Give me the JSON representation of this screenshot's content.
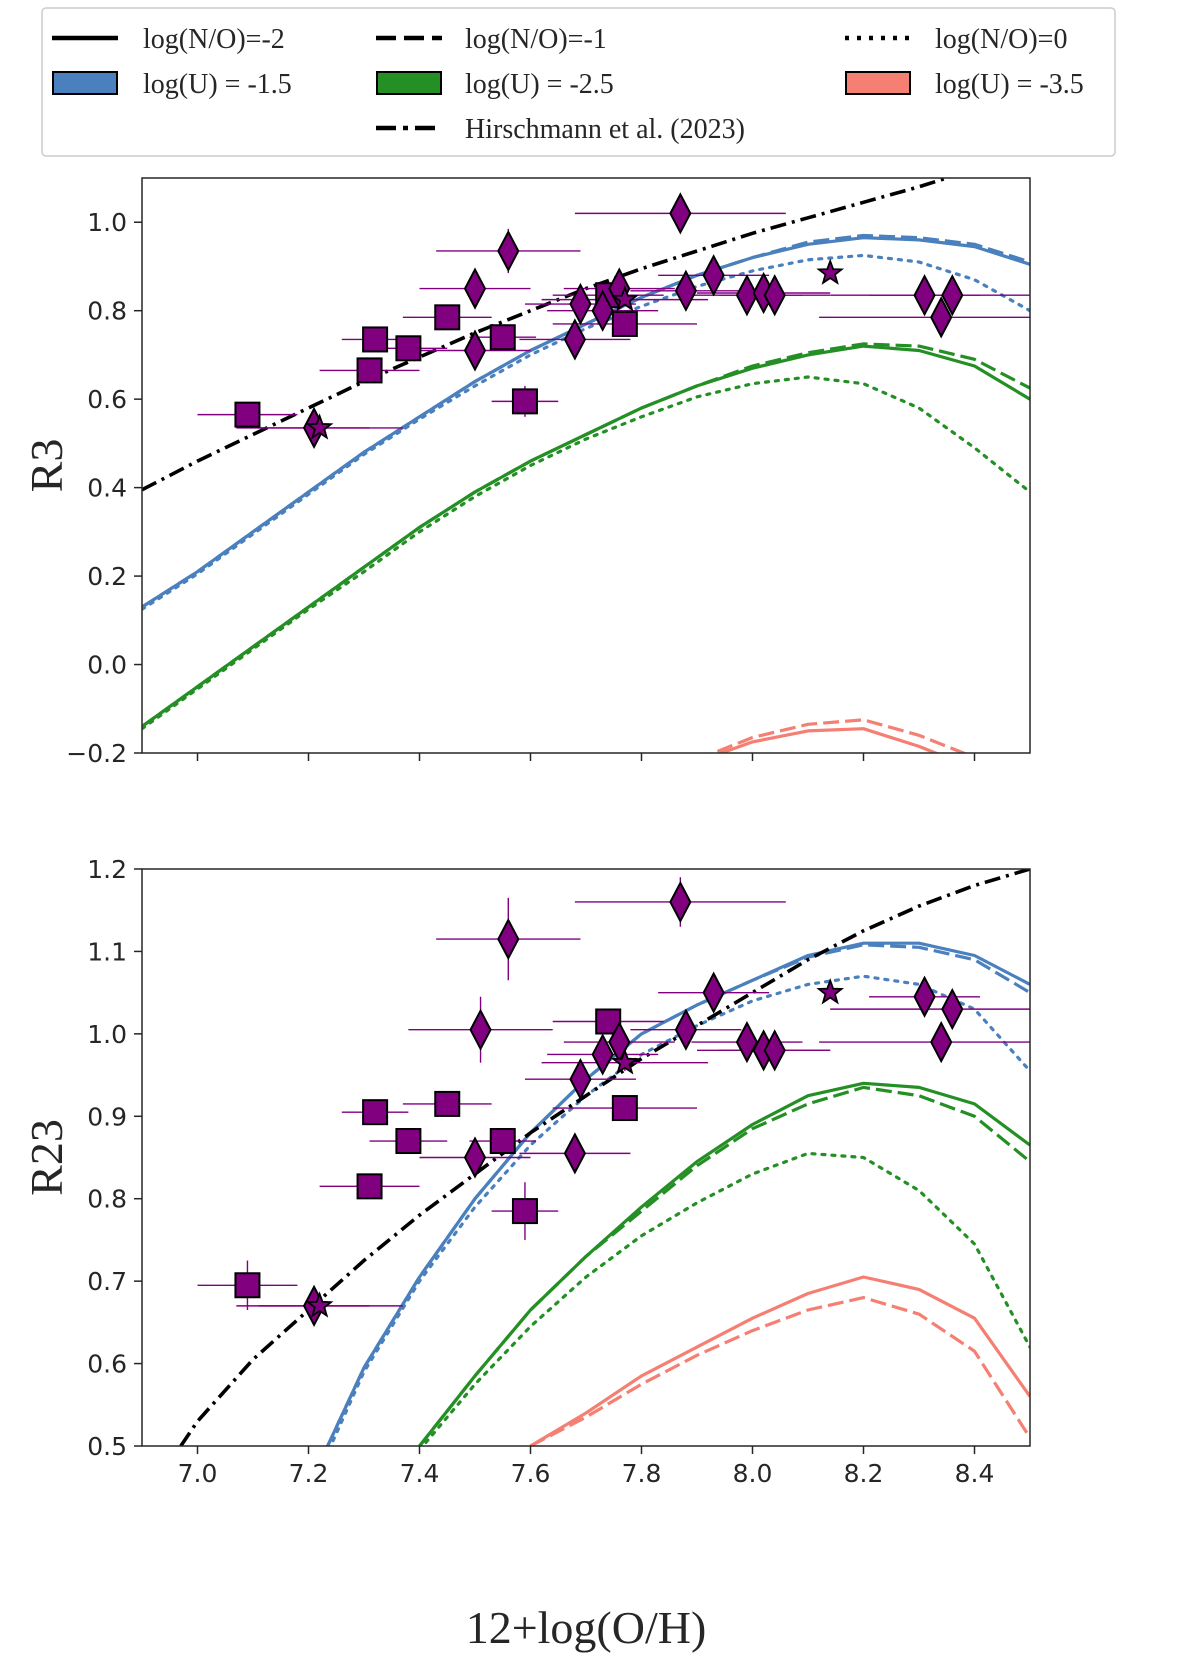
{
  "colors": {
    "blue": "#4a80bd",
    "green": "#248f24",
    "salmon": "#f47f72",
    "purple": "#800080",
    "black": "#000000",
    "hirschmann": "#000000"
  },
  "legend": {
    "placement": "top",
    "entries": [
      {
        "label": "log(N/O)=-2",
        "kind": "line",
        "style": "solid"
      },
      {
        "label": "log(N/O)=-1",
        "kind": "line",
        "style": "dashed"
      },
      {
        "label": "log(N/O)=0",
        "kind": "line",
        "style": "dotted"
      },
      {
        "label": "log(U) = -1.5",
        "kind": "patch",
        "color": "blue"
      },
      {
        "label": "log(U) = -2.5",
        "kind": "patch",
        "color": "green"
      },
      {
        "label": "log(U) = -3.5",
        "kind": "patch",
        "color": "salmon"
      },
      {
        "label": "Hirschmann et al. (2023)",
        "kind": "line",
        "style": "dashdot"
      }
    ]
  },
  "chart_data": [
    {
      "type": "line",
      "panel": "top",
      "xlabel": "",
      "ylabel": "R3",
      "xlim": [
        6.9,
        8.5
      ],
      "ylim": [
        -0.2,
        1.1
      ],
      "xticks": [
        7.0,
        7.2,
        7.4,
        7.6,
        7.8,
        8.0,
        8.2,
        8.4
      ],
      "xtick_labels": [],
      "yticks": [
        -0.2,
        0.0,
        0.2,
        0.4,
        0.6,
        0.8,
        1.0
      ],
      "ytick_labels": [
        "−0.2",
        "0.0",
        "0.2",
        "0.4",
        "0.6",
        "0.8",
        "1.0"
      ],
      "grid": false,
      "model_x": [
        6.9,
        7.0,
        7.1,
        7.2,
        7.3,
        7.4,
        7.5,
        7.6,
        7.7,
        7.8,
        7.9,
        8.0,
        8.1,
        8.2,
        8.3,
        8.4,
        8.5
      ],
      "models": [
        {
          "logU": "-1.5",
          "color": "blue",
          "style": "solid",
          "values": [
            0.13,
            0.21,
            0.3,
            0.39,
            0.48,
            0.56,
            0.64,
            0.71,
            0.77,
            0.83,
            0.88,
            0.92,
            0.95,
            0.965,
            0.96,
            0.945,
            0.905
          ]
        },
        {
          "logU": "-1.5",
          "color": "blue",
          "style": "dashed",
          "values": [
            0.13,
            0.21,
            0.3,
            0.39,
            0.48,
            0.56,
            0.64,
            0.71,
            0.77,
            0.83,
            0.88,
            0.92,
            0.955,
            0.97,
            0.965,
            0.95,
            0.91
          ]
        },
        {
          "logU": "-1.5",
          "color": "blue",
          "style": "dotted",
          "values": [
            0.125,
            0.205,
            0.295,
            0.385,
            0.475,
            0.555,
            0.63,
            0.7,
            0.76,
            0.81,
            0.855,
            0.89,
            0.915,
            0.925,
            0.91,
            0.87,
            0.8
          ]
        },
        {
          "logU": "-2.5",
          "color": "green",
          "style": "solid",
          "values": [
            -0.14,
            -0.05,
            0.04,
            0.13,
            0.22,
            0.31,
            0.39,
            0.46,
            0.52,
            0.58,
            0.63,
            0.67,
            0.7,
            0.72,
            0.71,
            0.675,
            0.6
          ]
        },
        {
          "logU": "-2.5",
          "color": "green",
          "style": "dashed",
          "values": [
            -0.14,
            -0.05,
            0.04,
            0.13,
            0.22,
            0.31,
            0.39,
            0.46,
            0.52,
            0.58,
            0.63,
            0.675,
            0.705,
            0.725,
            0.72,
            0.69,
            0.625
          ]
        },
        {
          "logU": "-2.5",
          "color": "green",
          "style": "dotted",
          "values": [
            -0.145,
            -0.055,
            0.035,
            0.125,
            0.21,
            0.3,
            0.38,
            0.45,
            0.51,
            0.56,
            0.605,
            0.635,
            0.65,
            0.635,
            0.58,
            0.49,
            0.39
          ]
        },
        {
          "logU": "-3.5",
          "color": "salmon",
          "style": "solid",
          "values": [
            null,
            null,
            null,
            null,
            null,
            null,
            null,
            null,
            null,
            null,
            -0.22,
            -0.175,
            -0.15,
            -0.145,
            -0.185,
            -0.235,
            null
          ]
        },
        {
          "logU": "-3.5",
          "color": "salmon",
          "style": "dashed",
          "values": [
            null,
            null,
            null,
            null,
            null,
            null,
            null,
            null,
            null,
            null,
            -0.215,
            -0.165,
            -0.135,
            -0.125,
            -0.16,
            -0.21,
            null
          ]
        }
      ],
      "hirschmann": {
        "x": [
          6.9,
          7.0,
          7.1,
          7.2,
          7.3,
          7.4,
          7.5,
          7.6,
          7.7,
          7.8,
          7.9,
          8.0,
          8.1,
          8.2,
          8.3,
          8.35
        ],
        "y": [
          0.395,
          0.46,
          0.52,
          0.58,
          0.64,
          0.695,
          0.75,
          0.8,
          0.85,
          0.895,
          0.935,
          0.975,
          1.01,
          1.045,
          1.08,
          1.1
        ]
      },
      "points": [
        {
          "x": 7.09,
          "y": 0.565,
          "marker": "square",
          "xerr": 0.09,
          "yerr": 0.01
        },
        {
          "x": 7.31,
          "y": 0.665,
          "marker": "square",
          "xerr": 0.09,
          "yerr": 0.01
        },
        {
          "x": 7.32,
          "y": 0.735,
          "marker": "square",
          "xerr": 0.06,
          "yerr": 0.01
        },
        {
          "x": 7.38,
          "y": 0.715,
          "marker": "square",
          "xerr": 0.07,
          "yerr": 0.01
        },
        {
          "x": 7.45,
          "y": 0.785,
          "marker": "square",
          "xerr": 0.08,
          "yerr": 0.01
        },
        {
          "x": 7.55,
          "y": 0.74,
          "marker": "square",
          "xerr": 0.06,
          "yerr": 0.01
        },
        {
          "x": 7.59,
          "y": 0.595,
          "marker": "square",
          "xerr": 0.06,
          "yerr": 0.035
        },
        {
          "x": 7.74,
          "y": 0.835,
          "marker": "square",
          "xerr": 0.1,
          "yerr": 0.01
        },
        {
          "x": 7.77,
          "y": 0.77,
          "marker": "square",
          "xerr": 0.13,
          "yerr": 0.01
        },
        {
          "x": 7.21,
          "y": 0.535,
          "marker": "diamond",
          "xerr": 0.1,
          "yerr": 0.02
        },
        {
          "x": 7.5,
          "y": 0.71,
          "marker": "diamond",
          "xerr": 0.1,
          "yerr": 0.02
        },
        {
          "x": 7.5,
          "y": 0.85,
          "marker": "diamond",
          "xerr": 0.1,
          "yerr": 0.02
        },
        {
          "x": 7.56,
          "y": 0.935,
          "marker": "diamond",
          "xerr": 0.13,
          "yerr": 0.05
        },
        {
          "x": 7.68,
          "y": 0.735,
          "marker": "diamond",
          "xerr": 0.1,
          "yerr": 0.02
        },
        {
          "x": 7.69,
          "y": 0.815,
          "marker": "diamond",
          "xerr": 0.1,
          "yerr": 0.02
        },
        {
          "x": 7.73,
          "y": 0.8,
          "marker": "diamond",
          "xerr": 0.1,
          "yerr": 0.02
        },
        {
          "x": 7.76,
          "y": 0.85,
          "marker": "diamond",
          "xerr": 0.1,
          "yerr": 0.02
        },
        {
          "x": 7.87,
          "y": 1.02,
          "marker": "diamond",
          "xerr": 0.19,
          "yerr": 0.03
        },
        {
          "x": 7.88,
          "y": 0.845,
          "marker": "diamond",
          "xerr": 0.1,
          "yerr": 0.02
        },
        {
          "x": 7.93,
          "y": 0.88,
          "marker": "diamond",
          "xerr": 0.1,
          "yerr": 0.02
        },
        {
          "x": 7.99,
          "y": 0.835,
          "marker": "diamond",
          "xerr": 0.1,
          "yerr": 0.02
        },
        {
          "x": 8.02,
          "y": 0.84,
          "marker": "diamond",
          "xerr": 0.12,
          "yerr": 0.02
        },
        {
          "x": 8.04,
          "y": 0.835,
          "marker": "diamond",
          "xerr": 0.1,
          "yerr": 0.02
        },
        {
          "x": 8.31,
          "y": 0.835,
          "marker": "diamond",
          "xerr": 0.1,
          "yerr": 0.02
        },
        {
          "x": 8.34,
          "y": 0.785,
          "marker": "diamond",
          "xerr": 0.22,
          "yerr": 0.02
        },
        {
          "x": 8.36,
          "y": 0.835,
          "marker": "diamond",
          "xerr": 0.22,
          "yerr": 0.02
        },
        {
          "x": 7.22,
          "y": 0.535,
          "marker": "star",
          "xerr": 0.15,
          "yerr": 0.01
        },
        {
          "x": 7.77,
          "y": 0.825,
          "marker": "star",
          "xerr": 0.15,
          "yerr": 0.01
        },
        {
          "x": 8.14,
          "y": 0.885,
          "marker": "star",
          "xerr": 0.0,
          "yerr": 0.0
        }
      ]
    },
    {
      "type": "line",
      "panel": "bottom",
      "xlabel": "12+log(O/H)",
      "ylabel": "R23",
      "xlim": [
        6.9,
        8.5
      ],
      "ylim": [
        0.5,
        1.2
      ],
      "xticks": [
        7.0,
        7.2,
        7.4,
        7.6,
        7.8,
        8.0,
        8.2,
        8.4
      ],
      "xtick_labels": [
        "7.0",
        "7.2",
        "7.4",
        "7.6",
        "7.8",
        "8.0",
        "8.2",
        "8.4"
      ],
      "yticks": [
        0.5,
        0.6,
        0.7,
        0.8,
        0.9,
        1.0,
        1.1,
        1.2
      ],
      "ytick_labels": [
        "0.5",
        "0.6",
        "0.7",
        "0.8",
        "0.9",
        "1.0",
        "1.1",
        "1.2"
      ],
      "grid": false,
      "model_x": [
        6.9,
        7.0,
        7.1,
        7.2,
        7.3,
        7.4,
        7.5,
        7.6,
        7.7,
        7.8,
        7.9,
        8.0,
        8.1,
        8.2,
        8.3,
        8.4,
        8.5
      ],
      "models": [
        {
          "logU": "-1.5",
          "color": "blue",
          "style": "solid",
          "values": [
            null,
            null,
            null,
            0.45,
            0.595,
            0.705,
            0.8,
            0.88,
            0.945,
            1.0,
            1.035,
            1.065,
            1.095,
            1.11,
            1.11,
            1.095,
            1.06
          ]
        },
        {
          "logU": "-1.5",
          "color": "blue",
          "style": "dashed",
          "values": [
            null,
            null,
            null,
            0.45,
            0.595,
            0.705,
            0.8,
            0.88,
            0.945,
            1.0,
            1.035,
            1.065,
            1.093,
            1.108,
            1.105,
            1.09,
            1.05
          ]
        },
        {
          "logU": "-1.5",
          "color": "blue",
          "style": "dotted",
          "values": [
            null,
            null,
            null,
            0.44,
            0.59,
            0.7,
            0.79,
            0.865,
            0.925,
            0.975,
            1.01,
            1.04,
            1.06,
            1.07,
            1.06,
            1.03,
            0.955
          ]
        },
        {
          "logU": "-2.5",
          "color": "green",
          "style": "solid",
          "values": [
            null,
            null,
            null,
            null,
            null,
            0.5,
            0.585,
            0.665,
            0.73,
            0.79,
            0.845,
            0.89,
            0.925,
            0.94,
            0.935,
            0.915,
            0.865
          ]
        },
        {
          "logU": "-2.5",
          "color": "green",
          "style": "dashed",
          "values": [
            null,
            null,
            null,
            null,
            null,
            0.5,
            0.585,
            0.665,
            0.73,
            0.785,
            0.84,
            0.885,
            0.915,
            0.935,
            0.925,
            0.9,
            0.845
          ]
        },
        {
          "logU": "-2.5",
          "color": "green",
          "style": "dotted",
          "values": [
            null,
            null,
            null,
            null,
            null,
            0.495,
            0.575,
            0.645,
            0.705,
            0.755,
            0.795,
            0.83,
            0.855,
            0.85,
            0.81,
            0.745,
            0.62
          ]
        },
        {
          "logU": "-3.5",
          "color": "salmon",
          "style": "solid",
          "values": [
            null,
            null,
            null,
            null,
            null,
            null,
            null,
            0.5,
            0.54,
            0.585,
            0.62,
            0.655,
            0.685,
            0.705,
            0.69,
            0.655,
            0.56
          ]
        },
        {
          "logU": "-3.5",
          "color": "salmon",
          "style": "dashed",
          "values": [
            null,
            null,
            null,
            null,
            null,
            null,
            null,
            0.5,
            0.535,
            0.575,
            0.61,
            0.64,
            0.665,
            0.68,
            0.66,
            0.615,
            0.51
          ]
        }
      ],
      "hirschmann": {
        "x": [
          6.97,
          7.0,
          7.1,
          7.2,
          7.3,
          7.4,
          7.5,
          7.6,
          7.7,
          7.8,
          7.9,
          8.0,
          8.1,
          8.2,
          8.3,
          8.4,
          8.5
        ],
        "y": [
          0.5,
          0.53,
          0.605,
          0.665,
          0.725,
          0.78,
          0.83,
          0.88,
          0.925,
          0.97,
          1.01,
          1.05,
          1.09,
          1.125,
          1.155,
          1.18,
          1.2
        ]
      },
      "points": [
        {
          "x": 7.09,
          "y": 0.695,
          "marker": "square",
          "xerr": 0.09,
          "yerr": 0.03
        },
        {
          "x": 7.31,
          "y": 0.815,
          "marker": "square",
          "xerr": 0.09,
          "yerr": 0.01
        },
        {
          "x": 7.32,
          "y": 0.905,
          "marker": "square",
          "xerr": 0.06,
          "yerr": 0.01
        },
        {
          "x": 7.38,
          "y": 0.87,
          "marker": "square",
          "xerr": 0.07,
          "yerr": 0.01
        },
        {
          "x": 7.45,
          "y": 0.915,
          "marker": "square",
          "xerr": 0.08,
          "yerr": 0.01
        },
        {
          "x": 7.55,
          "y": 0.87,
          "marker": "square",
          "xerr": 0.06,
          "yerr": 0.01
        },
        {
          "x": 7.59,
          "y": 0.785,
          "marker": "square",
          "xerr": 0.06,
          "yerr": 0.035
        },
        {
          "x": 7.74,
          "y": 1.015,
          "marker": "square",
          "xerr": 0.1,
          "yerr": 0.01
        },
        {
          "x": 7.77,
          "y": 0.91,
          "marker": "square",
          "xerr": 0.13,
          "yerr": 0.01
        },
        {
          "x": 7.21,
          "y": 0.67,
          "marker": "diamond",
          "xerr": 0.1,
          "yerr": 0.01
        },
        {
          "x": 7.5,
          "y": 0.85,
          "marker": "diamond",
          "xerr": 0.1,
          "yerr": 0.02
        },
        {
          "x": 7.51,
          "y": 1.005,
          "marker": "diamond",
          "xerr": 0.13,
          "yerr": 0.04
        },
        {
          "x": 7.56,
          "y": 1.115,
          "marker": "diamond",
          "xerr": 0.13,
          "yerr": 0.05
        },
        {
          "x": 7.68,
          "y": 0.855,
          "marker": "diamond",
          "xerr": 0.1,
          "yerr": 0.02
        },
        {
          "x": 7.69,
          "y": 0.945,
          "marker": "diamond",
          "xerr": 0.1,
          "yerr": 0.02
        },
        {
          "x": 7.73,
          "y": 0.975,
          "marker": "diamond",
          "xerr": 0.1,
          "yerr": 0.02
        },
        {
          "x": 7.76,
          "y": 0.99,
          "marker": "diamond",
          "xerr": 0.1,
          "yerr": 0.02
        },
        {
          "x": 7.87,
          "y": 1.16,
          "marker": "diamond",
          "xerr": 0.19,
          "yerr": 0.03
        },
        {
          "x": 7.88,
          "y": 1.005,
          "marker": "diamond",
          "xerr": 0.1,
          "yerr": 0.02
        },
        {
          "x": 7.93,
          "y": 1.05,
          "marker": "diamond",
          "xerr": 0.1,
          "yerr": 0.02
        },
        {
          "x": 7.99,
          "y": 0.99,
          "marker": "diamond",
          "xerr": 0.1,
          "yerr": 0.02
        },
        {
          "x": 8.02,
          "y": 0.98,
          "marker": "diamond",
          "xerr": 0.12,
          "yerr": 0.02
        },
        {
          "x": 8.04,
          "y": 0.98,
          "marker": "diamond",
          "xerr": 0.1,
          "yerr": 0.02
        },
        {
          "x": 8.31,
          "y": 1.045,
          "marker": "diamond",
          "xerr": 0.1,
          "yerr": 0.02
        },
        {
          "x": 8.34,
          "y": 0.99,
          "marker": "diamond",
          "xerr": 0.22,
          "yerr": 0.02
        },
        {
          "x": 8.36,
          "y": 1.03,
          "marker": "diamond",
          "xerr": 0.22,
          "yerr": 0.02
        },
        {
          "x": 7.22,
          "y": 0.67,
          "marker": "star",
          "xerr": 0.15,
          "yerr": 0.01
        },
        {
          "x": 7.77,
          "y": 0.965,
          "marker": "star",
          "xerr": 0.15,
          "yerr": 0.01
        },
        {
          "x": 8.14,
          "y": 1.05,
          "marker": "star",
          "xerr": 0.0,
          "yerr": 0.0
        }
      ]
    }
  ]
}
